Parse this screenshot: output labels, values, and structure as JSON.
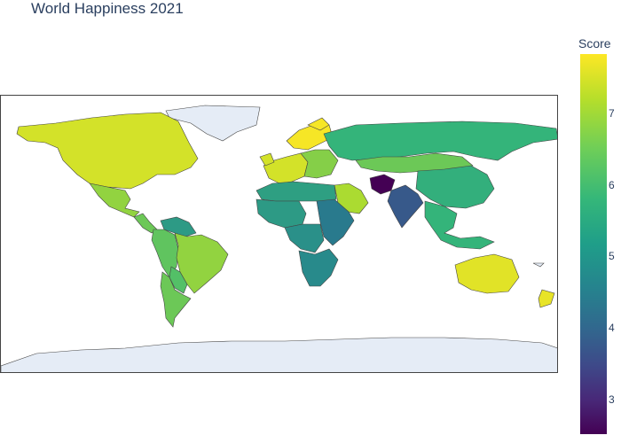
{
  "title": "World Happiness 2021",
  "colorbar": {
    "title": "Score",
    "ticks": [
      "7",
      "6",
      "5",
      "4",
      "3"
    ]
  },
  "colors": {
    "land_nodata": "#e5ecf6",
    "border": "#444444",
    "scale": [
      "#440154",
      "#3e4989",
      "#26828e",
      "#35b779",
      "#b5de2b",
      "#fde725"
    ]
  },
  "regions": [
    {
      "name": "greenland",
      "score": null
    },
    {
      "name": "canada-usa",
      "score": 7.0
    },
    {
      "name": "mexico",
      "score": 6.3
    },
    {
      "name": "central-america",
      "score": 6.0
    },
    {
      "name": "venezuela-guyana",
      "score": 5.0
    },
    {
      "name": "colombia-peru-ecuador",
      "score": 5.9
    },
    {
      "name": "brazil",
      "score": 6.3
    },
    {
      "name": "bolivia-paraguay",
      "score": 5.8
    },
    {
      "name": "chile-argentina",
      "score": 6.0
    },
    {
      "name": "nordics",
      "score": 7.5
    },
    {
      "name": "western-europe",
      "score": 7.0
    },
    {
      "name": "eastern-europe",
      "score": 6.2
    },
    {
      "name": "russia",
      "score": 5.5
    },
    {
      "name": "kazakhstan-mongolia",
      "score": 6.0
    },
    {
      "name": "china",
      "score": 5.4
    },
    {
      "name": "north-africa",
      "score": 5.1
    },
    {
      "name": "west-africa",
      "score": 5.0
    },
    {
      "name": "saudi-arabia",
      "score": 6.5
    },
    {
      "name": "east-africa",
      "score": 4.4
    },
    {
      "name": "central-africa",
      "score": 4.8
    },
    {
      "name": "southern-africa",
      "score": 4.7
    },
    {
      "name": "afghanistan",
      "score": 2.5
    },
    {
      "name": "india",
      "score": 3.8
    },
    {
      "name": "southeast-asia",
      "score": 5.5
    },
    {
      "name": "australia",
      "score": 7.2
    },
    {
      "name": "new-zealand",
      "score": 7.3
    },
    {
      "name": "antarctica",
      "score": null
    }
  ]
}
